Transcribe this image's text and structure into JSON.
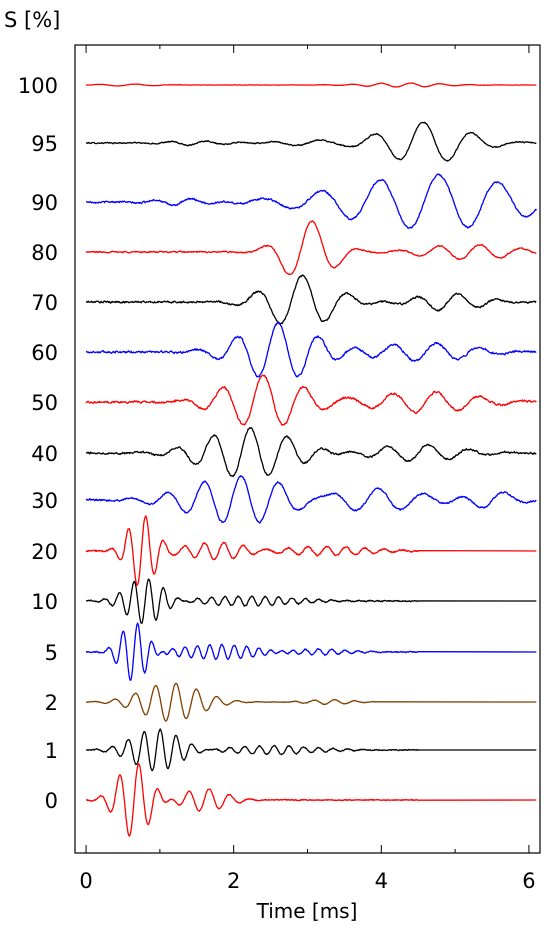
{
  "chart_data": {
    "type": "line",
    "ylabel": "S [%]",
    "xlabel": "Time [ms]",
    "xlim": [
      -0.15,
      6.15
    ],
    "xticks": [
      0,
      2,
      4,
      6
    ],
    "xtick_labels": [
      "0",
      "2",
      "4",
      "6"
    ],
    "grid": false,
    "legend": "none",
    "series": [
      {
        "label": "100",
        "color": "#ff0000",
        "end": 6.1,
        "noise": 0.03,
        "packets": [
          [
            0.55,
            2.0,
            0.1,
            0.5,
            0
          ],
          [
            4.3,
            2.5,
            0.2,
            0.7,
            0
          ]
        ]
      },
      {
        "label": "95",
        "color": "#000000",
        "end": 6.1,
        "noise": 0.05,
        "packets": [
          [
            1.5,
            2.0,
            0.1,
            0.6,
            0
          ],
          [
            3.0,
            1.5,
            0.12,
            0.5,
            0
          ],
          [
            4.6,
            1.5,
            0.95,
            0.75,
            0.6
          ]
        ]
      },
      {
        "label": "90",
        "color": "#0000ff",
        "end": 6.1,
        "noise": 0.06,
        "packets": [
          [
            1.3,
            2.0,
            0.12,
            0.6,
            0
          ],
          [
            4.7,
            1.25,
            1.05,
            1.6,
            0.3
          ]
        ]
      },
      {
        "label": "80",
        "color": "#ff0000",
        "end": 6.1,
        "noise": 0.04,
        "packets": [
          [
            3.0,
            1.5,
            1.05,
            0.45,
            0.3
          ],
          [
            5.2,
            1.8,
            0.25,
            0.8,
            0
          ]
        ]
      },
      {
        "label": "70",
        "color": "#000000",
        "end": 6.1,
        "noise": 0.06,
        "packets": [
          [
            2.9,
            1.6,
            0.95,
            0.6,
            0.4
          ],
          [
            4.9,
            1.8,
            0.3,
            0.6,
            0
          ]
        ]
      },
      {
        "label": "60",
        "color": "#0000ff",
        "end": 6.1,
        "noise": 0.06,
        "packets": [
          [
            2.6,
            1.8,
            0.95,
            0.7,
            0.5
          ],
          [
            4.6,
            1.7,
            0.3,
            0.9,
            0
          ]
        ]
      },
      {
        "label": "50",
        "color": "#ff0000",
        "end": 6.1,
        "noise": 0.06,
        "packets": [
          [
            2.4,
            1.8,
            0.9,
            0.7,
            0.5
          ],
          [
            4.6,
            1.7,
            0.35,
            0.9,
            0
          ]
        ]
      },
      {
        "label": "40",
        "color": "#000000",
        "end": 6.1,
        "noise": 0.06,
        "packets": [
          [
            2.2,
            2.0,
            0.9,
            0.8,
            0.4
          ],
          [
            4.5,
            1.8,
            0.3,
            0.8,
            0
          ]
        ]
      },
      {
        "label": "30",
        "color": "#0000ff",
        "end": 6.1,
        "noise": 0.06,
        "packets": [
          [
            2.05,
            2.0,
            0.9,
            0.9,
            0.3
          ],
          [
            3.8,
            1.6,
            0.45,
            1.0,
            0
          ],
          [
            5.5,
            1.5,
            0.35,
            0.4,
            0
          ]
        ]
      },
      {
        "label": "20",
        "color": "#ff0000",
        "end": 4.5,
        "noise": 0.04,
        "packets": [
          [
            0.75,
            4.2,
            1.2,
            0.25,
            0
          ],
          [
            1.8,
            3.8,
            0.3,
            0.6,
            0
          ],
          [
            3.2,
            3.9,
            0.15,
            0.9,
            0
          ]
        ]
      },
      {
        "label": "10",
        "color": "#000000",
        "end": 4.5,
        "noise": 0.04,
        "packets": [
          [
            0.8,
            5.0,
            0.95,
            0.35,
            0
          ],
          [
            2.2,
            5.5,
            0.2,
            0.9,
            0
          ]
        ]
      },
      {
        "label": "5",
        "color": "#0000ff",
        "end": 4.5,
        "noise": 0.04,
        "packets": [
          [
            0.65,
            5.0,
            1.2,
            0.25,
            0
          ],
          [
            1.8,
            6.0,
            0.3,
            0.8,
            0
          ],
          [
            3.1,
            5.5,
            0.12,
            0.6,
            0
          ]
        ]
      },
      {
        "label": "2",
        "color": "#804000",
        "end": 3.9,
        "noise": 0.02,
        "packets": [
          [
            1.15,
            3.6,
            0.95,
            0.55,
            0
          ],
          [
            3.3,
            3.6,
            0.12,
            0.4,
            0
          ]
        ]
      },
      {
        "label": "1",
        "color": "#000000",
        "end": 4.5,
        "noise": 0.04,
        "packets": [
          [
            0.95,
            4.6,
            0.95,
            0.45,
            0
          ],
          [
            2.5,
            5.0,
            0.2,
            0.8,
            0
          ]
        ]
      },
      {
        "label": "0",
        "color": "#ff0000",
        "end": 4.5,
        "noise": 0.03,
        "packets": [
          [
            0.65,
            3.8,
            1.35,
            0.3,
            0
          ],
          [
            1.6,
            3.6,
            0.4,
            0.4,
            0
          ]
        ]
      }
    ]
  }
}
